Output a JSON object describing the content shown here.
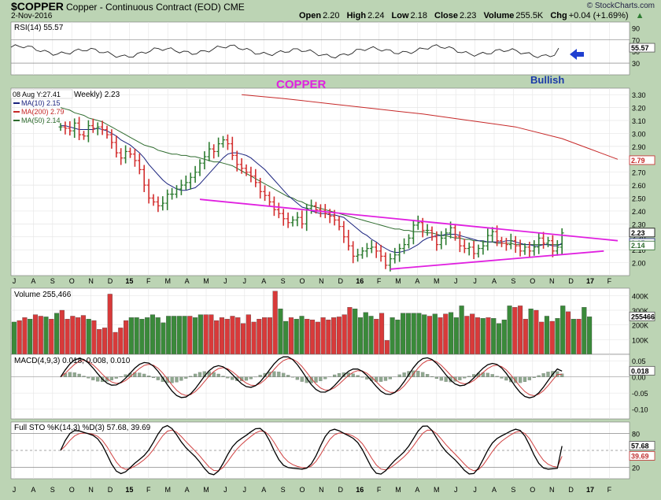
{
  "header": {
    "symbol": "$COPPER",
    "description": "Copper - Continuous Contract (EOD)",
    "exchange": "CME",
    "date": "2-Nov-2016",
    "logo": "© StockCharts.com",
    "open_label": "Open",
    "open": "2.20",
    "high_label": "High",
    "high": "2.24",
    "low_label": "Low",
    "low": "2.18",
    "close_label": "Close",
    "close": "2.23",
    "volume_label": "Volume",
    "volume": "255.5K",
    "chg_label": "Chg",
    "chg": "+0.04 (+1.69%)",
    "chg_icon": "up-triangle-icon"
  },
  "annotations": {
    "title": "COPPER",
    "bias": "Bullish",
    "crosshair": "08 Aug Y:27.41"
  },
  "colors": {
    "background": "#bcd4b4",
    "panel": "#ffffff",
    "up_bar": "#2e7d32",
    "down_bar": "#d32f2f",
    "ma10": "#1a237e",
    "ma200": "#c62828",
    "ma50": "#2e6b2e",
    "trendline": "#e020e0",
    "volume_up": "#3a8a3a",
    "volume_down": "#d83a3a",
    "std_line": "#000000",
    "signal_line": "#d04040",
    "arrow": "#1f3fd0"
  },
  "x_axis": [
    "J",
    "A",
    "S",
    "O",
    "N",
    "D",
    "15",
    "F",
    "M",
    "A",
    "M",
    "J",
    "J",
    "A",
    "S",
    "O",
    "N",
    "D",
    "16",
    "F",
    "M",
    "A",
    "M",
    "J",
    "J",
    "A",
    "S",
    "O",
    "N",
    "D",
    "17",
    "F"
  ],
  "chart_data": [
    {
      "type": "line",
      "title": "RSI(14) 55.57",
      "series": [
        {
          "name": "RSI(14)",
          "last": 55.57
        }
      ],
      "ylim": [
        10,
        100
      ],
      "yticks": [
        30,
        50,
        70,
        90
      ],
      "reference_lines": [
        30,
        70
      ],
      "last_label": "55.57"
    },
    {
      "type": "line",
      "title": "Weekly) 2.23",
      "ylim": [
        1.9,
        3.35
      ],
      "yticks": [
        "3.30",
        "3.20",
        "3.10",
        "3.00",
        "2.90",
        "2.80",
        "2.70",
        "2.60",
        "2.50",
        "2.40",
        "2.30",
        "2.20",
        "2.10",
        "2.00"
      ],
      "legend": [
        {
          "name": "MA(10) 2.15",
          "color": "#1a237e"
        },
        {
          "name": "MA(200) 2.79",
          "color": "#c62828"
        },
        {
          "name": "MA(50) 2.14",
          "color": "#2e6b2e"
        }
      ],
      "price_labels": [
        "2.79",
        "2.23",
        "2.15",
        "2.14"
      ],
      "weekly_closes": [
        3.05,
        3.04,
        3.02,
        3.08,
        2.99,
        2.98,
        3.06,
        3.04,
        3.05,
        3.03,
        2.99,
        2.93,
        2.85,
        2.81,
        2.86,
        2.84,
        2.79,
        2.72,
        2.6,
        2.5,
        2.47,
        2.44,
        2.46,
        2.53,
        2.53,
        2.57,
        2.6,
        2.62,
        2.66,
        2.7,
        2.77,
        2.82,
        2.88,
        2.86,
        2.92,
        2.95,
        2.92,
        2.83,
        2.76,
        2.73,
        2.7,
        2.67,
        2.62,
        2.55,
        2.52,
        2.47,
        2.41,
        2.38,
        2.34,
        2.31,
        2.33,
        2.35,
        2.3,
        2.42,
        2.44,
        2.41,
        2.4,
        2.38,
        2.36,
        2.33,
        2.28,
        2.2,
        2.13,
        2.05,
        2.06,
        2.09,
        2.11,
        2.12,
        2.09,
        2.05,
        1.98,
        2.03,
        2.06,
        2.11,
        2.14,
        2.19,
        2.29,
        2.31,
        2.25,
        2.25,
        2.2,
        2.14,
        2.19,
        2.23,
        2.27,
        2.2,
        2.13,
        2.11,
        2.12,
        2.07,
        2.11,
        2.13,
        2.21,
        2.24,
        2.17,
        2.15,
        2.14,
        2.17,
        2.13,
        2.09,
        2.12,
        2.09,
        2.12,
        2.19,
        2.15,
        2.17,
        2.09,
        2.12,
        2.23
      ],
      "ma10": [
        3.06,
        3.06,
        3.05,
        3.04,
        3.03,
        3.03,
        3.03,
        3.03,
        3.04,
        3.03,
        3.02,
        3.0,
        2.98,
        2.95,
        2.93,
        2.91,
        2.88,
        2.85,
        2.81,
        2.76,
        2.72,
        2.68,
        2.64,
        2.61,
        2.59,
        2.57,
        2.56,
        2.56,
        2.57,
        2.58,
        2.61,
        2.65,
        2.69,
        2.73,
        2.77,
        2.81,
        2.84,
        2.85,
        2.85,
        2.84,
        2.83,
        2.81,
        2.78,
        2.75,
        2.72,
        2.68,
        2.64,
        2.6,
        2.56,
        2.52,
        2.49,
        2.46,
        2.43,
        2.42,
        2.4,
        2.39,
        2.38,
        2.38,
        2.37,
        2.37,
        2.36,
        2.35,
        2.32,
        2.29,
        2.26,
        2.23,
        2.21,
        2.18,
        2.16,
        2.13,
        2.11,
        2.09,
        2.08,
        2.08,
        2.09,
        2.1,
        2.12,
        2.14,
        2.17,
        2.19,
        2.2,
        2.21,
        2.21,
        2.22,
        2.22,
        2.22,
        2.21,
        2.2,
        2.19,
        2.18,
        2.17,
        2.17,
        2.16,
        2.16,
        2.16,
        2.16,
        2.17,
        2.17,
        2.16,
        2.15,
        2.14,
        2.14,
        2.13,
        2.13,
        2.14,
        2.14,
        2.13,
        2.13,
        2.15
      ],
      "ma50": [
        3.2,
        3.19,
        3.18,
        3.16,
        3.15,
        3.14,
        3.12,
        3.11,
        3.1,
        3.09,
        3.07,
        3.05,
        3.03,
        3.01,
        2.99,
        2.97,
        2.95,
        2.93,
        2.91,
        2.9,
        2.89,
        2.87,
        2.86,
        2.85,
        2.84,
        2.84,
        2.83,
        2.83,
        2.82,
        2.82,
        2.81,
        2.8,
        2.79,
        2.78,
        2.78,
        2.77,
        2.76,
        2.75,
        2.73,
        2.71,
        2.69,
        2.67,
        2.65,
        2.63,
        2.61,
        2.59,
        2.57,
        2.55,
        2.53,
        2.51,
        2.5,
        2.48,
        2.47,
        2.45,
        2.44,
        2.43,
        2.42,
        2.41,
        2.4,
        2.39,
        2.38,
        2.37,
        2.36,
        2.35,
        2.34,
        2.33,
        2.32,
        2.31,
        2.3,
        2.29,
        2.28,
        2.27,
        2.26,
        2.26,
        2.25,
        2.25,
        2.24,
        2.24,
        2.24,
        2.23,
        2.23,
        2.22,
        2.21,
        2.21,
        2.2,
        2.19,
        2.19,
        2.18,
        2.18,
        2.17,
        2.17,
        2.16,
        2.16,
        2.16,
        2.15,
        2.15,
        2.15,
        2.15,
        2.14,
        2.14,
        2.14,
        2.14,
        2.14,
        2.14,
        2.14,
        2.14,
        2.14,
        2.14,
        2.14
      ],
      "ma200": [
        [
          39,
          3.3
        ],
        [
          48,
          3.27
        ],
        [
          58,
          3.23
        ],
        [
          68,
          3.19
        ],
        [
          78,
          3.15
        ],
        [
          88,
          3.1
        ],
        [
          98,
          3.05
        ],
        [
          108,
          2.96
        ],
        [
          114,
          2.88
        ],
        [
          120,
          2.8
        ]
      ],
      "trendlines": [
        {
          "name": "upper",
          "from": [
            30,
            2.49
          ],
          "to": [
            120,
            2.17
          ]
        },
        {
          "name": "lower",
          "from": [
            71,
            1.95
          ],
          "to": [
            117,
            2.09
          ]
        }
      ]
    },
    {
      "type": "bar",
      "title": "Volume 255,466",
      "ylim": [
        0,
        450000
      ],
      "yticks": [
        "400K",
        "300K",
        "200K",
        "100K"
      ],
      "last_label": "255466",
      "values": [
        220000,
        230000,
        250000,
        240000,
        270000,
        260000,
        255000,
        240000,
        280000,
        300000,
        240000,
        260000,
        250000,
        265000,
        240000,
        230000,
        170000,
        180000,
        410000,
        150000,
        180000,
        230000,
        250000,
        250000,
        240000,
        250000,
        270000,
        250000,
        215000,
        260000,
        260000,
        260000,
        260000,
        260000,
        250000,
        270000,
        270000,
        270000,
        230000,
        250000,
        240000,
        260000,
        250000,
        210000,
        270000,
        220000,
        240000,
        250000,
        250000,
        430000,
        310000,
        225000,
        250000,
        240000,
        260000,
        240000,
        235000,
        220000,
        250000,
        235000,
        250000,
        255000,
        270000,
        320000,
        310000,
        250000,
        285000,
        260000,
        240000,
        280000,
        95000,
        250000,
        235000,
        280000,
        280000,
        280000,
        280000,
        270000,
        260000,
        275000,
        250000,
        275000,
        285000,
        250000,
        330000,
        260000,
        275000,
        250000,
        245000,
        250000,
        245000,
        210000,
        235000,
        330000,
        320000,
        330000,
        240000,
        310000,
        300000,
        220000,
        260000,
        225000,
        245000,
        330000,
        290000,
        240000,
        240000,
        320000,
        255466
      ]
    },
    {
      "type": "line",
      "title": "MACD(4,9,3) 0.018, 0.008, 0.010",
      "series": [
        {
          "name": "MACD(4,9,3)",
          "last": 0.018
        },
        {
          "name": "Signal",
          "last": 0.008
        },
        {
          "name": "Histogram",
          "last": 0.01
        }
      ],
      "ylim": [
        -0.13,
        0.07
      ],
      "yticks": [
        "0.05",
        "0.00",
        "-0.05",
        "-0.10"
      ],
      "last_label": "0.018"
    },
    {
      "type": "line",
      "title": "Full STO %K(14,3) %D(3) 57.68, 39.69",
      "series": [
        {
          "name": "%K(14,3)",
          "last": 57.68
        },
        {
          "name": "%D(3)",
          "last": 39.69
        }
      ],
      "ylim": [
        0,
        100
      ],
      "yticks": [
        80,
        20
      ],
      "reference_lines": [
        20,
        50,
        80
      ],
      "last_labels": [
        "57.68",
        "39.69"
      ]
    }
  ]
}
